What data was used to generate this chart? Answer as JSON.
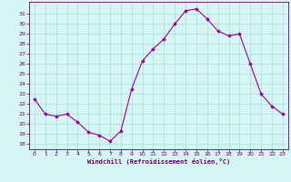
{
  "x": [
    0,
    1,
    2,
    3,
    4,
    5,
    6,
    7,
    8,
    9,
    10,
    11,
    12,
    13,
    14,
    15,
    16,
    17,
    18,
    19,
    20,
    21,
    22,
    23
  ],
  "y": [
    22.5,
    21.0,
    20.8,
    21.0,
    20.2,
    19.2,
    18.9,
    18.3,
    19.3,
    23.5,
    26.3,
    27.5,
    28.5,
    30.0,
    31.3,
    31.5,
    30.5,
    29.3,
    28.8,
    29.0,
    26.0,
    23.0,
    21.8,
    21.0
  ],
  "ylim_min": 17.5,
  "ylim_max": 32.2,
  "yticks": [
    18,
    19,
    20,
    21,
    22,
    23,
    24,
    25,
    26,
    27,
    28,
    29,
    30,
    31
  ],
  "xticks": [
    0,
    1,
    2,
    3,
    4,
    5,
    6,
    7,
    8,
    9,
    10,
    11,
    12,
    13,
    14,
    15,
    16,
    17,
    18,
    19,
    20,
    21,
    22,
    23
  ],
  "line_color": "#990099",
  "marker_color": "#990099",
  "bg_color": "#d6f5f5",
  "grid_color": "#aadddd",
  "xlabel": "Windchill (Refroidissement éolien,°C)",
  "axis_label_color": "#660066",
  "tick_label_color": "#660066",
  "spine_color": "#660066"
}
